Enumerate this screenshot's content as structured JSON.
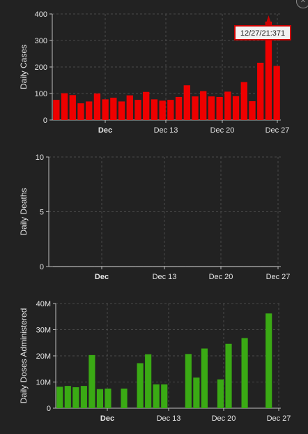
{
  "colors": {
    "background": "#222222",
    "axis": "#bdbdbd",
    "grid": "#4a4a4a",
    "text": "#e6e6e6",
    "cases_bar": "#ee0000",
    "deaths_line": "#d9d9d9",
    "doses_bar": "#3aaa14",
    "tooltip_border": "#cc0000",
    "tooltip_bg": "#f2f2f2"
  },
  "close_icon": "close-icon",
  "chart_data": [
    {
      "type": "bar",
      "ylabel": "Daily Cases",
      "ylim": [
        0,
        400
      ],
      "yticks": [
        {
          "value": 0,
          "label": "0"
        },
        {
          "value": 100,
          "label": "100"
        },
        {
          "value": 200,
          "label": "200"
        },
        {
          "value": 300,
          "label": "300"
        },
        {
          "value": 400,
          "label": "400"
        }
      ],
      "xticks": [
        {
          "label": "Dec",
          "bold": true
        },
        {
          "label": "Dec 13",
          "bold": false
        },
        {
          "label": "Dec 20",
          "bold": false
        },
        {
          "label": "Dec 27",
          "bold": false
        }
      ],
      "grid": true,
      "values": [
        76,
        101,
        94,
        63,
        70,
        100,
        78,
        84,
        70,
        93,
        76,
        106,
        78,
        73,
        76,
        87,
        131,
        89,
        109,
        89,
        87,
        107,
        90,
        143,
        71,
        216,
        371,
        204
      ],
      "tooltip": {
        "text": "12/27/21:371",
        "index": 26
      }
    },
    {
      "type": "line",
      "ylabel": "Daily Deaths",
      "ylim": [
        0,
        10
      ],
      "yticks": [
        {
          "value": 0,
          "label": "0"
        },
        {
          "value": 5,
          "label": "5"
        },
        {
          "value": 10,
          "label": "10"
        }
      ],
      "xticks": [
        {
          "label": "Dec",
          "bold": true
        },
        {
          "label": "Dec 13",
          "bold": false
        },
        {
          "label": "Dec 20",
          "bold": false
        },
        {
          "label": "Dec 27",
          "bold": false
        }
      ],
      "grid": true,
      "values": [
        0,
        0,
        0,
        0,
        0,
        0,
        0,
        0,
        0,
        0,
        0,
        0,
        0,
        0,
        0,
        0,
        0,
        0,
        0,
        0,
        0,
        0,
        0,
        0,
        0,
        0,
        0,
        0
      ]
    },
    {
      "type": "bar",
      "ylabel": "Daily Doses Administered",
      "ylim": [
        0,
        40000000
      ],
      "yticks": [
        {
          "value": 0,
          "label": "0"
        },
        {
          "value": 10000000,
          "label": "10M"
        },
        {
          "value": 20000000,
          "label": "20M"
        },
        {
          "value": 30000000,
          "label": "30M"
        },
        {
          "value": 40000000,
          "label": "40M"
        }
      ],
      "xticks": [
        {
          "label": "Dec",
          "bold": true
        },
        {
          "label": "Dec 13",
          "bold": false
        },
        {
          "label": "Dec 20",
          "bold": false
        },
        {
          "label": "Dec 27",
          "bold": false
        }
      ],
      "grid": true,
      "values": [
        8200000,
        8500000,
        8000000,
        8500000,
        20300000,
        7300000,
        7500000,
        0,
        7500000,
        0,
        17200000,
        20600000,
        9100000,
        9100000,
        0,
        0,
        20700000,
        11700000,
        22800000,
        0,
        11000000,
        24600000,
        0,
        26800000,
        0,
        0,
        36200000,
        0
      ]
    }
  ]
}
